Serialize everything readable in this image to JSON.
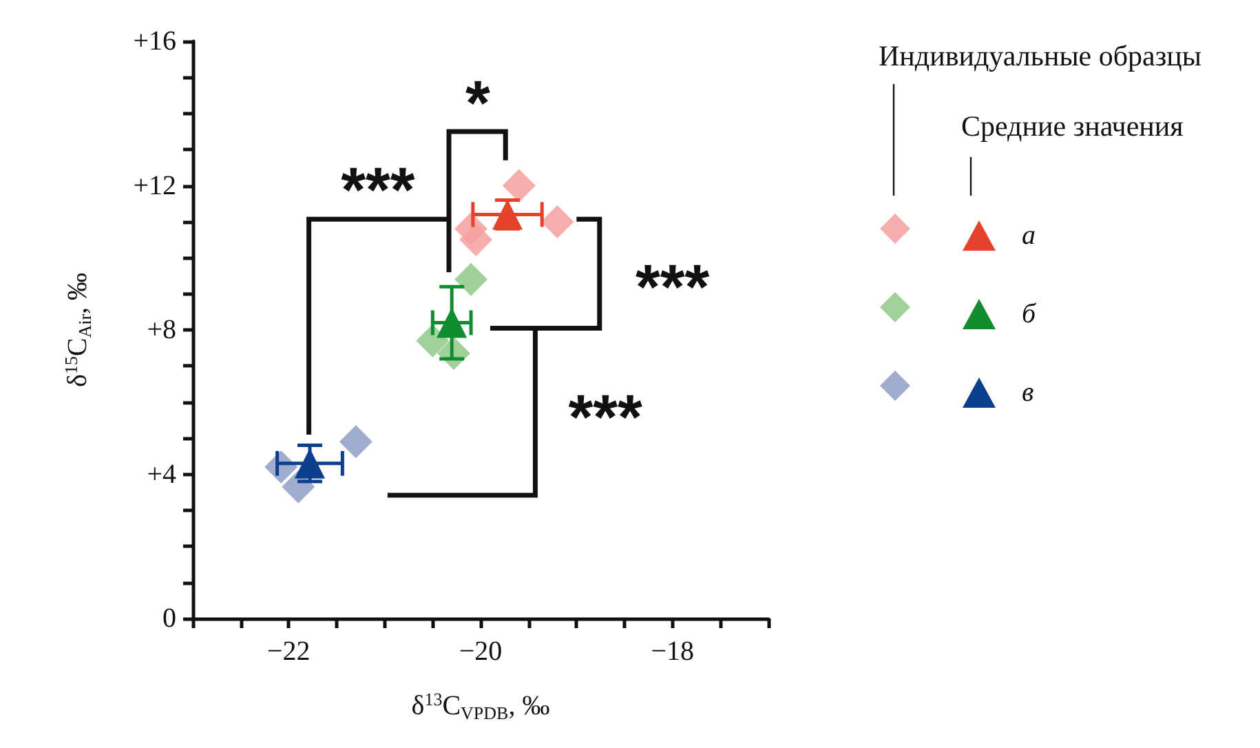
{
  "chart_data": {
    "type": "scatter",
    "xlabel": "δ$^{13}$C$_{VPDB}$, ‰",
    "ylabel": "δ$^{15}$C$_{Air}$, ‰",
    "legend_title": "Индивидуальные образцы",
    "annotations": [
      "*",
      "***",
      "***",
      "***",
      "Средние значения"
    ],
    "xlim": [
      -23,
      -17
    ],
    "xticks": [
      {
        "value": -23,
        "label": null
      },
      {
        "value": -22.5,
        "label": null
      },
      {
        "value": -22,
        "label": "−22"
      },
      {
        "value": -21.5,
        "label": null
      },
      {
        "value": -21,
        "label": null
      },
      {
        "value": -20.5,
        "label": null
      },
      {
        "value": -20,
        "label": "−20"
      },
      {
        "value": -19.5,
        "label": null
      },
      {
        "value": -19,
        "label": null
      },
      {
        "value": -18.5,
        "label": null
      },
      {
        "value": -18,
        "label": "−18"
      },
      {
        "value": -17.5,
        "label": null
      },
      {
        "value": -17,
        "label": null
      }
    ],
    "ylim": [
      0,
      16
    ],
    "yticks": [
      0,
      {
        "value": 1,
        "label": null
      },
      {
        "value": 2,
        "label": null
      },
      {
        "value": 3,
        "label": null
      },
      {
        "value": 4,
        "label": "+4"
      },
      {
        "value": 5,
        "label": null
      },
      {
        "value": 6,
        "label": null
      },
      {
        "value": 7,
        "label": null
      },
      {
        "value": 8,
        "label": "+8"
      },
      {
        "value": 9,
        "label": null
      },
      {
        "value": 10,
        "label": null
      },
      {
        "value": 11,
        "label": null
      },
      {
        "value": 12,
        "label": "+12"
      },
      {
        "value": 13,
        "label": null
      },
      {
        "value": 14,
        "label": null
      },
      {
        "value": 15,
        "label": null
      },
      {
        "value": 16,
        "label": "+16"
      }
    ],
    "grid": false,
    "legend": "right",
    "series": [
      {
        "name": "а",
        "marker": "triangle",
        "color": "#e5412b",
        "x": [
          -19.72
        ],
        "values": [
          11.2
        ],
        "errors": [
          0.4
        ],
        "xerrors": [
          0.36
        ]
      },
      {
        "name": "б",
        "marker": "triangle",
        "color": "#118c2e",
        "x": [
          -20.3
        ],
        "values": [
          8.2
        ],
        "errors": [
          1.0
        ],
        "xerrors": [
          0.2
        ]
      },
      {
        "name": "в",
        "marker": "triangle",
        "color": "#0d3f8f",
        "x": [
          -21.78
        ],
        "values": [
          4.3
        ],
        "errors": [
          0.5
        ],
        "xerrors": [
          0.34
        ]
      },
      {
        "marker": "diamond",
        "color": "#f4a09e",
        "x": [
          -19.6,
          -19.2,
          -20.05,
          -20.1
        ],
        "values": [
          12.0,
          11.0,
          10.5,
          10.8
        ]
      },
      {
        "marker": "diamond",
        "color": "#8fc98a",
        "x": [
          -20.1,
          -20.5,
          -20.28
        ],
        "values": [
          9.4,
          7.7,
          7.35
        ]
      },
      {
        "marker": "diamond",
        "color": "#8f9cc8",
        "x": [
          -21.3,
          -22.08,
          -21.9
        ],
        "values": [
          4.9,
          4.2,
          3.65
        ]
      }
    ]
  }
}
